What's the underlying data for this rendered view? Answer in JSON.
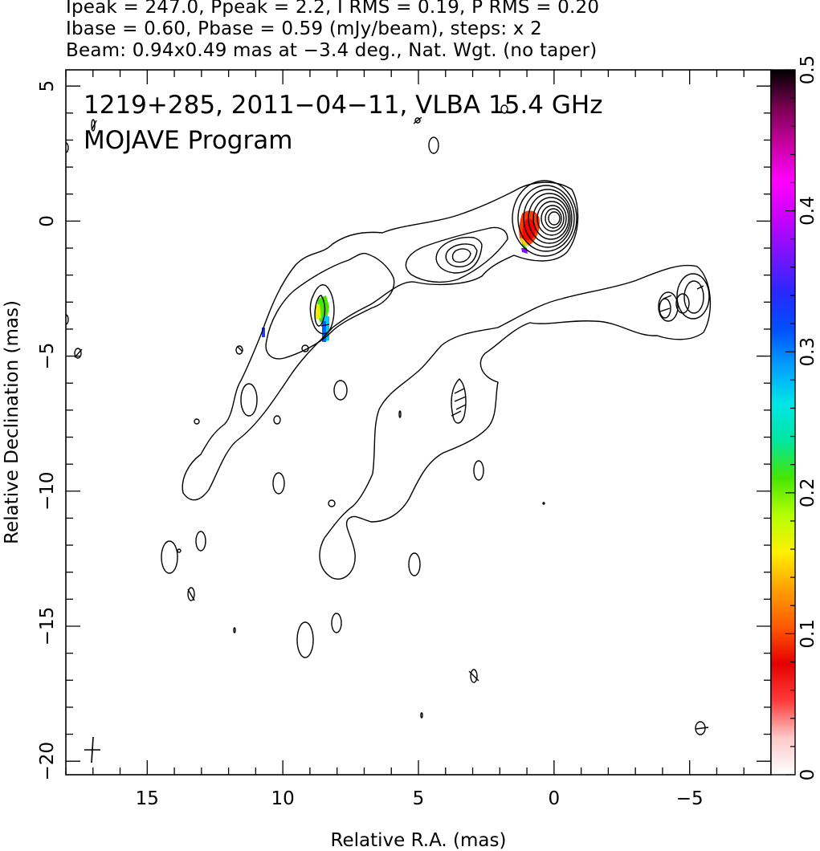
{
  "header": {
    "line1": "Ipeak = 247.0, Ppeak = 2.2, I RMS = 0.19, P RMS = 0.20",
    "line2": "Ibase = 0.60, Pbase = 0.59 (mJy/beam), steps: x 2",
    "line3": "Beam: 0.94x0.49 mas at −3.4 deg., Nat. Wgt. (no taper)"
  },
  "chart_data": {
    "type": "contour",
    "title": "1219+285, 2011−04−11, VLBA 15.4 GHz",
    "subtitle": "MOJAVE Program",
    "xlabel": "Relative R.A. (mas)",
    "ylabel": "Relative Declination (mas)",
    "xlim": [
      18,
      -8
    ],
    "ylim": [
      -20.5,
      5.6
    ],
    "x_ticks": [
      15,
      10,
      5,
      0,
      -5
    ],
    "x_tick_labels": [
      "15",
      "10",
      "5",
      "0",
      "−5"
    ],
    "y_ticks": [
      5,
      0,
      -5,
      -10,
      -15,
      -20
    ],
    "y_tick_labels": [
      "5",
      "0",
      "−5",
      "−10",
      "−15",
      "−20"
    ],
    "colorbar": {
      "min": 0,
      "max": 0.5,
      "ticks": [
        0,
        0.1,
        0.2,
        0.3,
        0.4,
        0.5
      ],
      "tick_labels": [
        "0",
        "0.1",
        "0.2",
        "0.3",
        "0.4",
        "0.5"
      ],
      "colors": [
        "#ffffff",
        "#ffc8c8",
        "#ff3a3a",
        "#e60000",
        "#ff5a00",
        "#ffa000",
        "#fff000",
        "#b4ff00",
        "#46e600",
        "#00e6a0",
        "#00e6e6",
        "#00a0ff",
        "#0050ff",
        "#2828ff",
        "#7814ff",
        "#c800ff",
        "#ff00ff",
        "#c800a0",
        "#780050",
        "#000000"
      ]
    },
    "contour_levels_mJy_per_beam": [
      0.6,
      1.2,
      2.4,
      4.8,
      9.6,
      19.2,
      38.4,
      76.8,
      153.6
    ],
    "core": {
      "x": 0.0,
      "y": 0.0,
      "peak_mJy_per_beam": 247.0
    },
    "polarization_patches": [
      {
        "x": 0.9,
        "y": -0.4,
        "fractional_pol": 0.09
      },
      {
        "x": 8.6,
        "y": -3.5,
        "fractional_pol": 0.21
      },
      {
        "x": 8.4,
        "y": -4.0,
        "fractional_pol": 0.33
      },
      {
        "x": 10.8,
        "y": -4.1,
        "fractional_pol": 0.37
      }
    ],
    "beam": {
      "major_mas": 0.94,
      "minor_mas": 0.49,
      "pa_deg": -3.4
    }
  }
}
